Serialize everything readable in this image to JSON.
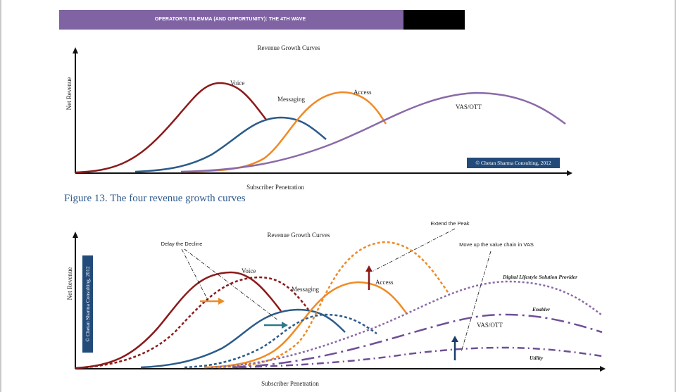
{
  "header": {
    "title": "OPERATOR'S DILEMMA (AND OPPORTUNITY): THE 4TH WAVE"
  },
  "figure1": {
    "title": "Revenue Growth Curves",
    "xlabel": "Subscriber Penetration",
    "ylabel": "Net Revenue",
    "copyright": "© Chetan Sharma Consulting, 2012",
    "curve_labels": {
      "voice": "Voice",
      "messaging": "Messaging",
      "access": "Access",
      "vas": "VAS/OTT"
    }
  },
  "caption": "Figure 13. The four revenue growth curves",
  "figure2": {
    "title": "Revenue Growth Curves",
    "xlabel": "Subscriber Penetration",
    "ylabel": "Net Revenue",
    "copyright": "© Chetan Sharma Consulting, 2012",
    "curve_labels": {
      "voice": "Voice",
      "messaging": "Messaging",
      "access": "Access",
      "vas": "VAS/OTT",
      "digital": "Digital Lifestyle Solution Provider",
      "enabler": "Enabler",
      "utility": "Utility"
    },
    "annotations": {
      "delay": "Delay the Decline",
      "extend": "Extend the Peak",
      "move_up": "Move up the value chain in VAS"
    }
  },
  "colors": {
    "voice": "#8b1a1a",
    "messaging": "#2b5b8a",
    "access": "#f08a24",
    "vas": "#8a6aa8",
    "header": "#7f63a3",
    "caption": "#2e5a8c",
    "copyright_bg": "#234b7a"
  }
}
